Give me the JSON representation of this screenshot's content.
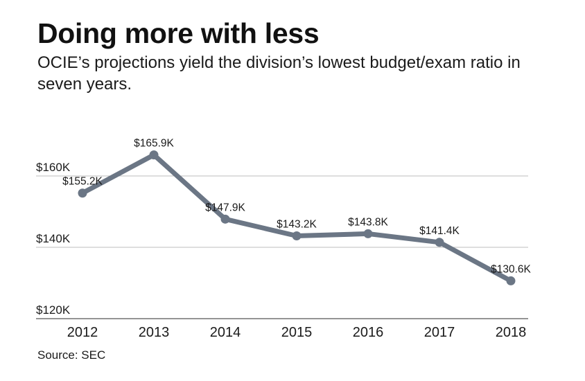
{
  "chart_data": {
    "type": "line",
    "title": "Doing more with less",
    "subtitle": "OCIE’s projections yield the division’s lowest budget/exam ratio in seven years.",
    "categories": [
      "2012",
      "2013",
      "2014",
      "2015",
      "2016",
      "2017",
      "2018"
    ],
    "values": [
      155.2,
      165.9,
      147.9,
      143.2,
      143.8,
      141.4,
      130.6
    ],
    "value_labels": [
      "$155.2K",
      "$165.9K",
      "$147.9K",
      "$143.2K",
      "$143.8K",
      "$141.4K",
      "$130.6K"
    ],
    "ylim": [
      120,
      170
    ],
    "yticks": [
      120,
      140,
      160
    ],
    "ytick_labels": [
      "$120K",
      "$140K",
      "$160K"
    ],
    "xlabel": "",
    "ylabel": "",
    "grid": true,
    "source": "Source: SEC",
    "colors": {
      "line": "#6b7685",
      "grid": "#bdbdbd",
      "axis": "#555555"
    }
  }
}
